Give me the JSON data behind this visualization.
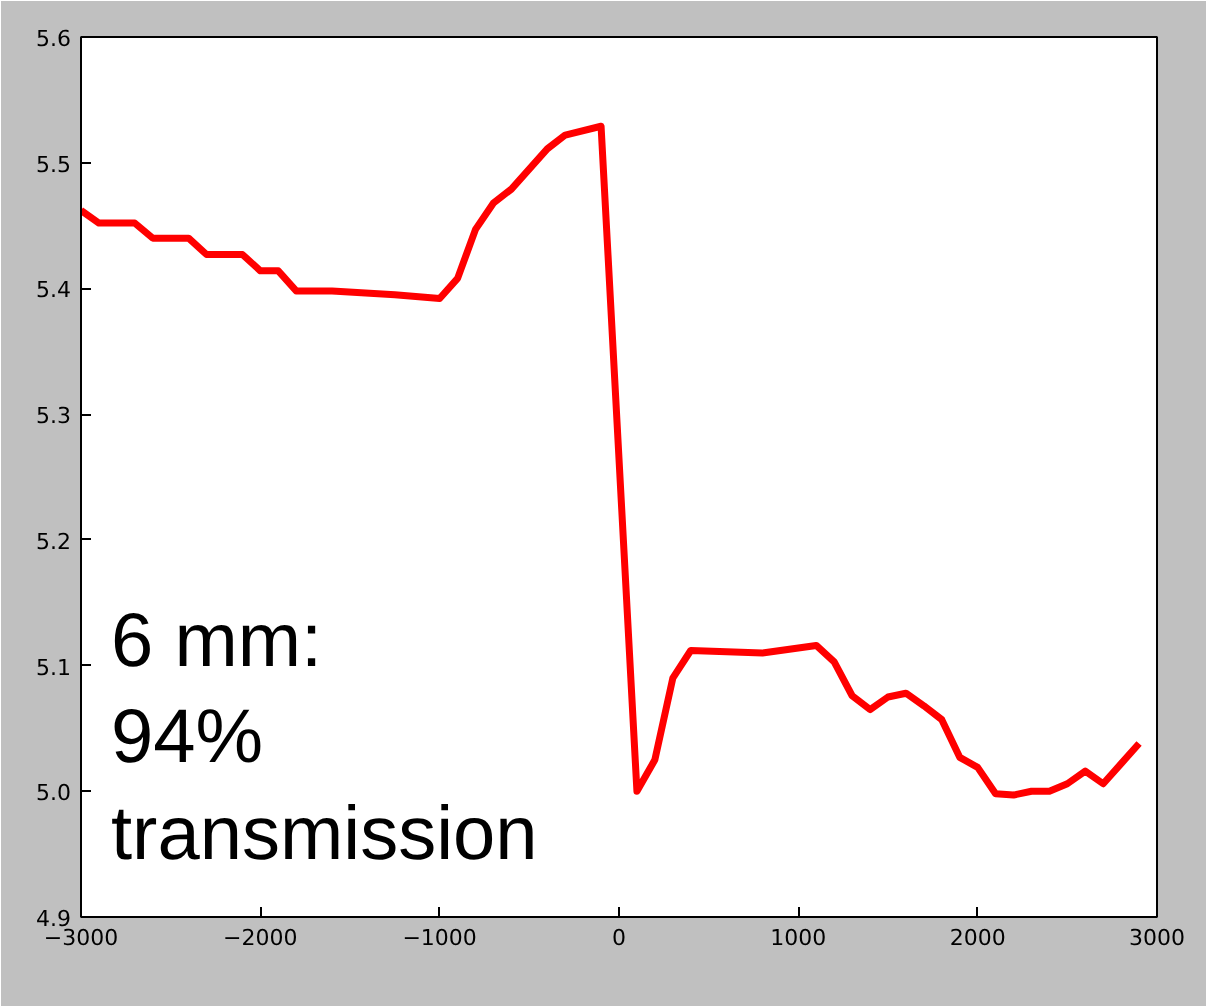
{
  "chart_data": {
    "type": "line",
    "x": [
      -3000,
      -2900,
      -2700,
      -2600,
      -2400,
      -2300,
      -2100,
      -2000,
      -1900,
      -1800,
      -1600,
      -1250,
      -1000,
      -900,
      -800,
      -700,
      -600,
      -400,
      -300,
      -100,
      100,
      200,
      300,
      400,
      800,
      1100,
      1200,
      1300,
      1400,
      1500,
      1600,
      1700,
      1800,
      1900,
      2000,
      2100,
      2200,
      2300,
      2400,
      2500,
      2600,
      2700,
      2800,
      2900
    ],
    "series": [
      {
        "color": "#ff0000",
        "values": [
          5.462,
          5.452,
          5.452,
          5.44,
          5.44,
          5.427,
          5.427,
          5.414,
          5.414,
          5.398,
          5.398,
          5.395,
          5.392,
          5.408,
          5.447,
          5.468,
          5.479,
          5.511,
          5.522,
          5.529,
          5.0,
          5.025,
          5.09,
          5.112,
          5.11,
          5.116,
          5.103,
          5.076,
          5.065,
          5.075,
          5.078,
          5.068,
          5.057,
          5.027,
          5.019,
          4.998,
          4.997,
          5.0,
          5.0,
          5.006,
          5.016,
          5.006,
          5.022,
          5.038
        ]
      }
    ],
    "xlim": [
      -3000,
      3000
    ],
    "ylim": [
      4.9,
      5.6
    ],
    "xticks": [
      {
        "value": -3000,
        "label": "−3000"
      },
      {
        "value": -2000,
        "label": "−2000"
      },
      {
        "value": -1000,
        "label": "−1000"
      },
      0,
      1000,
      2000,
      3000
    ],
    "yticks": [
      4.9,
      {
        "value": 5.0,
        "label": "5.0"
      },
      5.1,
      5.2,
      5.3,
      5.4,
      5.5,
      5.6
    ],
    "annotations": [
      "6 mm:\n94%\ntransmission"
    ],
    "grid": false,
    "marker": "none",
    "line_style": "solid"
  }
}
